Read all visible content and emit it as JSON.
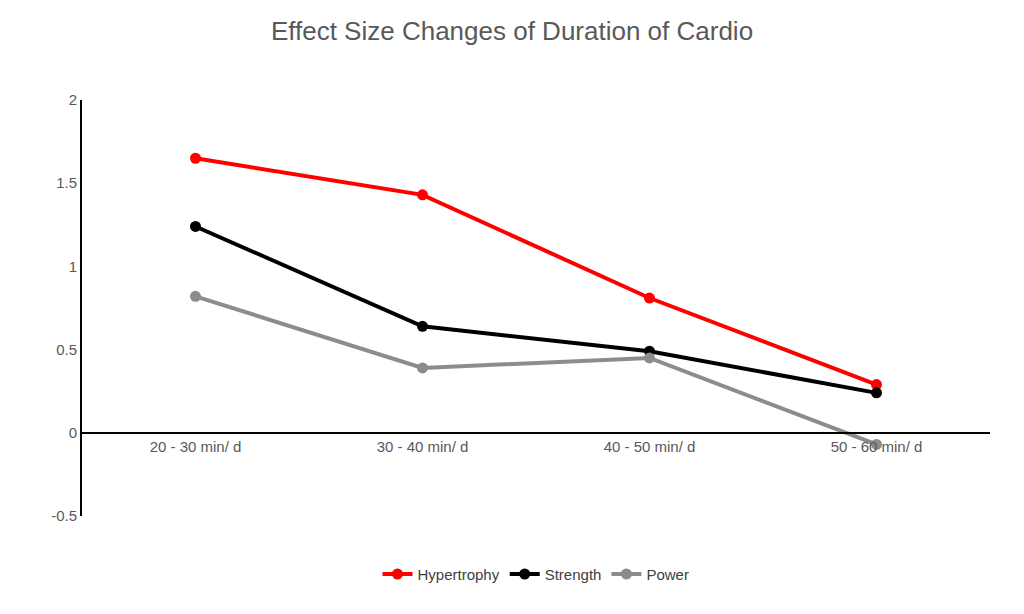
{
  "chart_data": {
    "type": "line",
    "title": "Effect Size Changes of Duration of Cardio",
    "categories": [
      "20 - 30 min/ d",
      "30 - 40 min/ d",
      "40 - 50 min/ d",
      "50 - 60 min/ d"
    ],
    "series": [
      {
        "name": "Hypertrophy",
        "color": "#ff0000",
        "values": [
          1.65,
          1.43,
          0.81,
          0.29
        ]
      },
      {
        "name": "Strength",
        "color": "#000000",
        "values": [
          1.24,
          0.64,
          0.49,
          0.24
        ]
      },
      {
        "name": "Power",
        "color": "#8c8c8c",
        "values": [
          0.82,
          0.39,
          0.45,
          -0.07
        ]
      }
    ],
    "ylim": [
      -0.5,
      2
    ],
    "yticks": [
      -0.5,
      0,
      0.5,
      1,
      1.5,
      2
    ],
    "grid": false,
    "legend": "bottom",
    "marker": "circle"
  }
}
